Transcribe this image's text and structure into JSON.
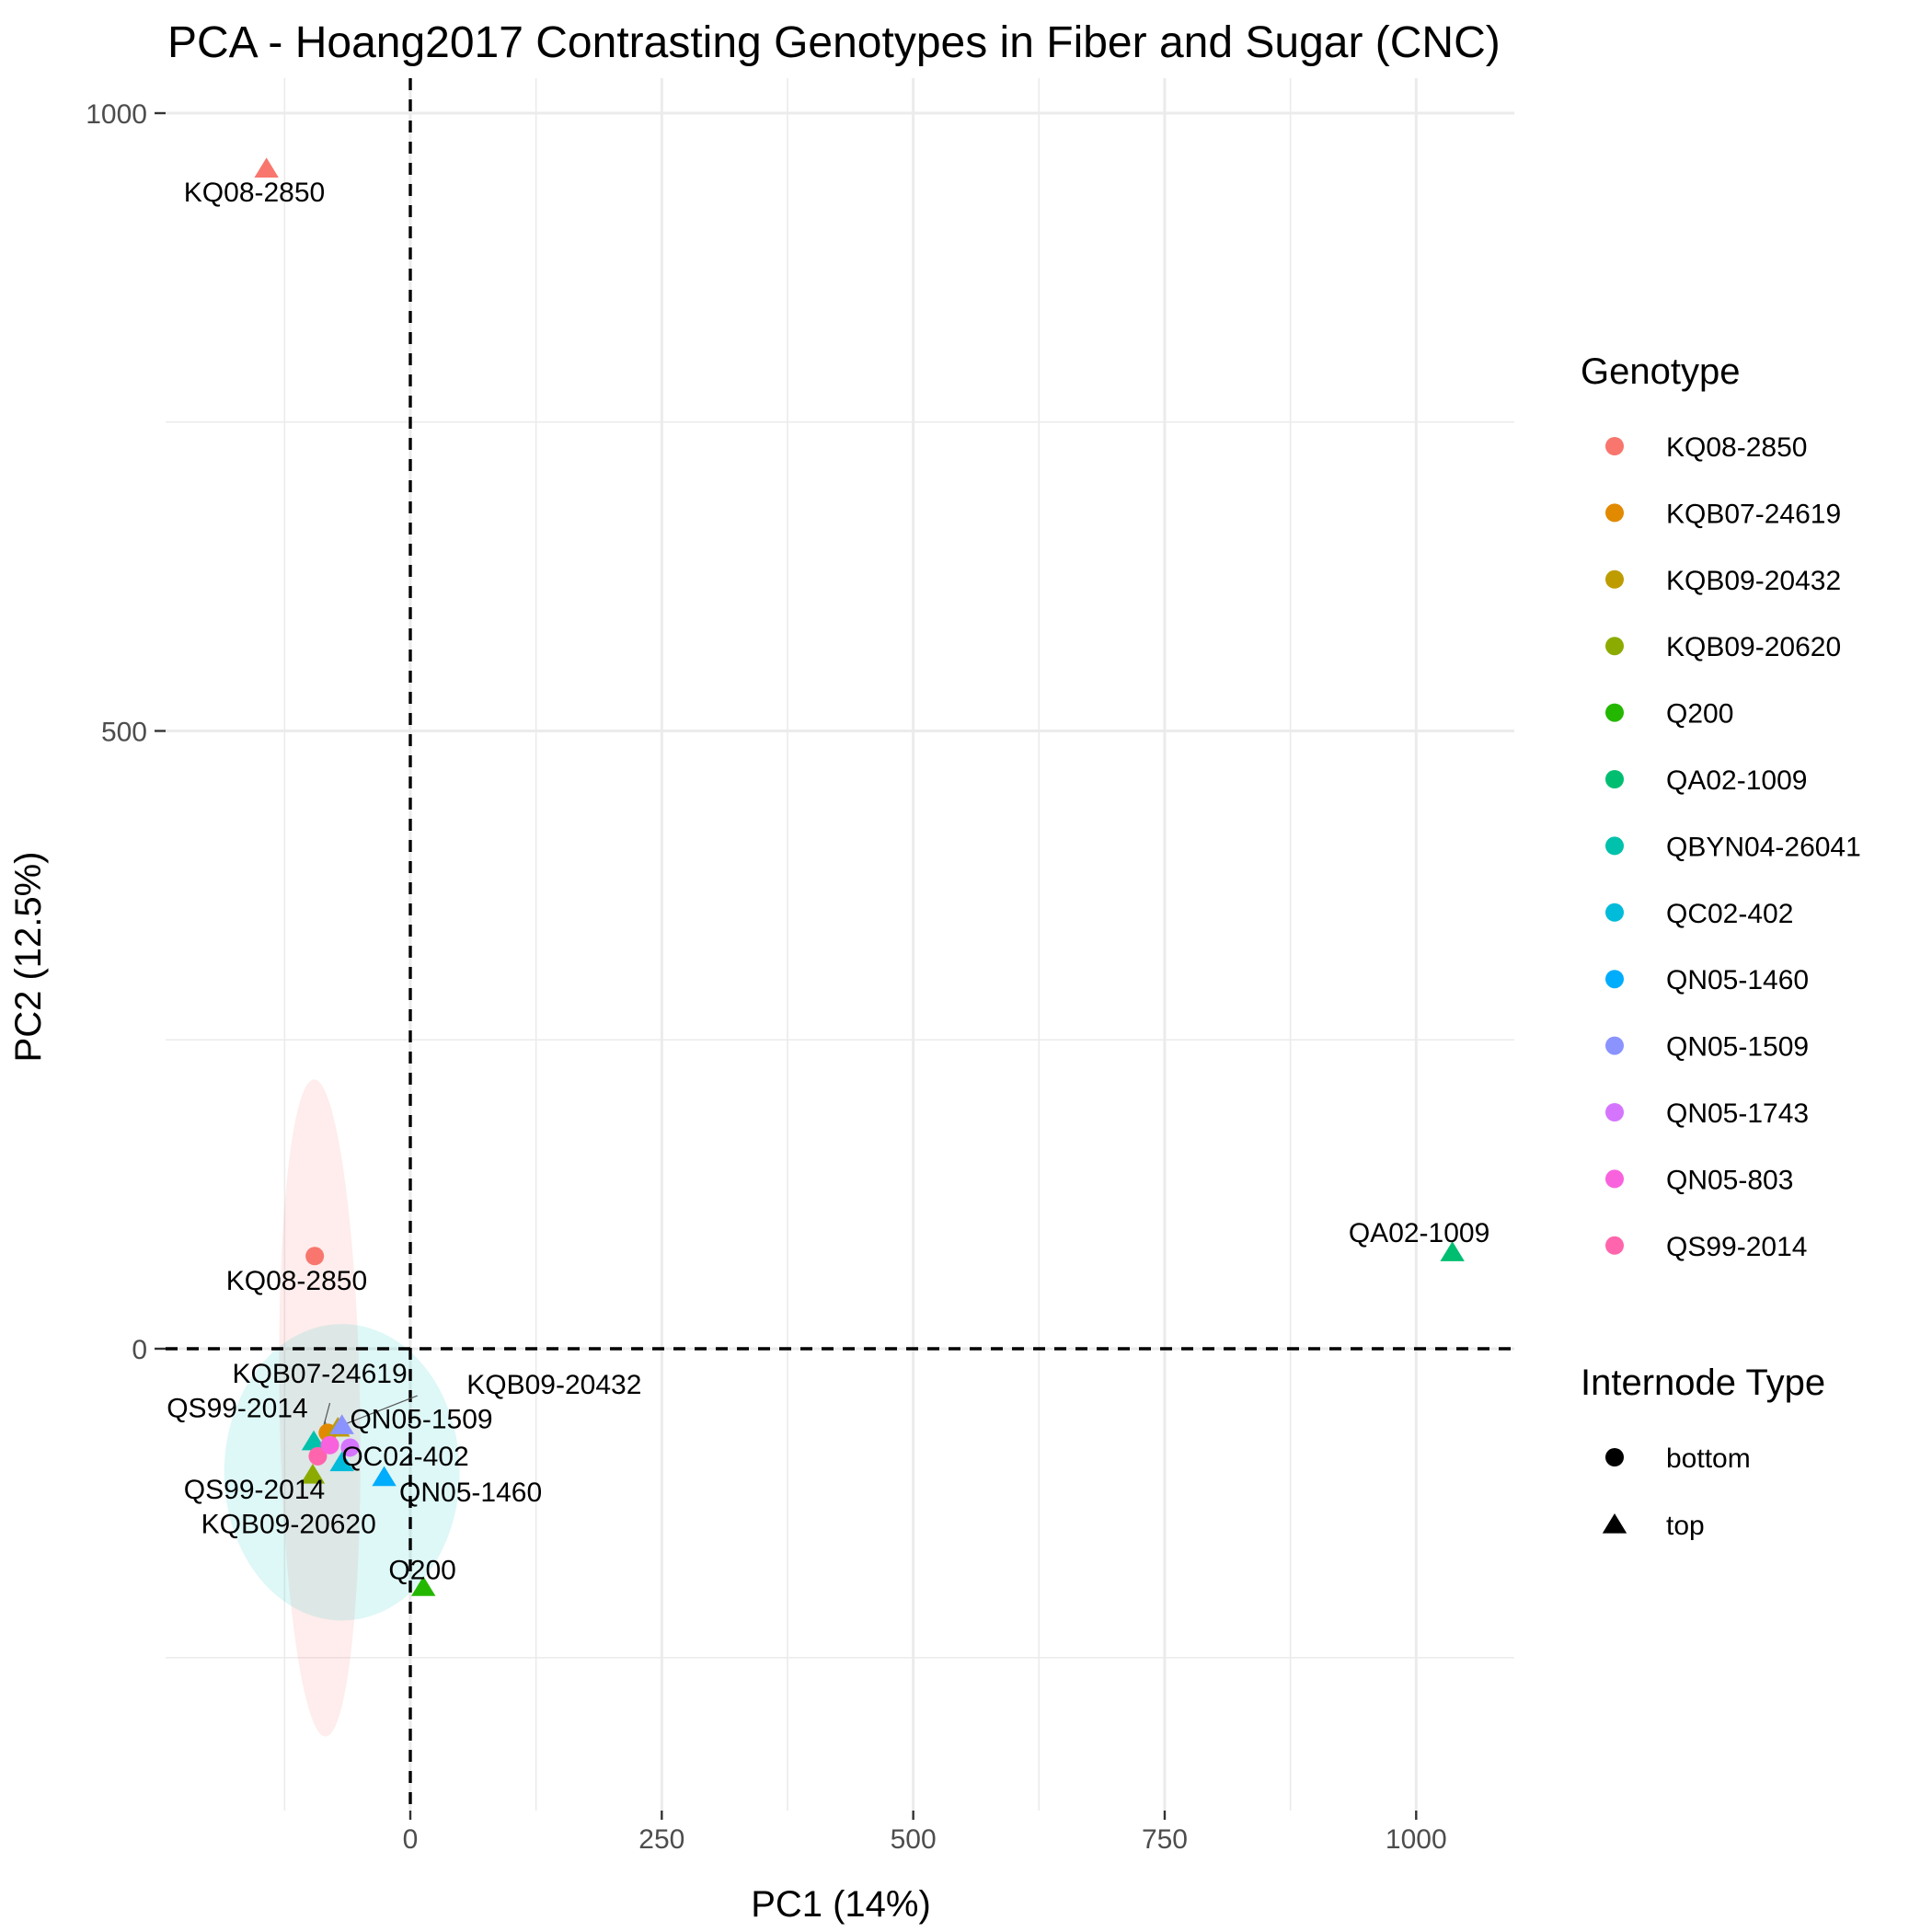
{
  "chart_data": {
    "type": "scatter",
    "title": "PCA - Hoang2017 Contrasting Genotypes in Fiber and Sugar (CNC)",
    "xlabel": "PC1 (14%)",
    "ylabel": "PC2 (12.5%)",
    "xlim": [
      -250,
      1100
    ],
    "ylim": [
      -375,
      1030
    ],
    "x_ticks": [
      0,
      250,
      500,
      750,
      1000
    ],
    "x_tick_labels": [
      "0",
      "250",
      "500",
      "750",
      "1000"
    ],
    "y_ticks": [
      0,
      500,
      1000
    ],
    "y_tick_labels": [
      "0",
      "500",
      "1000"
    ],
    "grid": true,
    "reference_lines": {
      "x": 0,
      "y": 0,
      "style": "dashed"
    },
    "legend_placement": "right",
    "legend_color": {
      "title": "Genotype",
      "entries": [
        {
          "name": "KQ08-2850",
          "color": "#F8766D"
        },
        {
          "name": "KQB07-24619",
          "color": "#E18A00"
        },
        {
          "name": "KQB09-20432",
          "color": "#BE9C00"
        },
        {
          "name": "KQB09-20620",
          "color": "#8CAB00"
        },
        {
          "name": "Q200",
          "color": "#24B700"
        },
        {
          "name": "QA02-1009",
          "color": "#00BE70"
        },
        {
          "name": "QBYN04-26041",
          "color": "#00C1AB"
        },
        {
          "name": "QC02-402",
          "color": "#00BBDA"
        },
        {
          "name": "QN05-1460",
          "color": "#00ACFC"
        },
        {
          "name": "QN05-1509",
          "color": "#8B93FF"
        },
        {
          "name": "QN05-1743",
          "color": "#D575FE"
        },
        {
          "name": "QN05-803",
          "color": "#F962DD"
        },
        {
          "name": "QS99-2014",
          "color": "#FF65AC"
        }
      ]
    },
    "legend_shape": {
      "title": "Internode Type",
      "entries": [
        {
          "name": "bottom",
          "shape": "circle"
        },
        {
          "name": "top",
          "shape": "triangle"
        }
      ]
    },
    "ellipses": [
      {
        "group": "top",
        "color": "#F8766D",
        "cx": -90,
        "cy": -48,
        "rx": 40,
        "ry": 266,
        "rotation_deg": 1
      },
      {
        "group": "bottom",
        "color": "#00BFC4",
        "cx": -68,
        "cy": -100,
        "rx": 117,
        "ry": 120,
        "rotation_deg": 0
      }
    ],
    "points": [
      {
        "genotype": "KQ08-2850",
        "type": "top",
        "x": -143,
        "y": 955
      },
      {
        "genotype": "KQ08-2850",
        "type": "bottom",
        "x": -95,
        "y": 75
      },
      {
        "genotype": "QA02-1009",
        "type": "top",
        "x": 1036,
        "y": 78
      },
      {
        "genotype": "KQB07-24619",
        "type": "bottom",
        "x": -82,
        "y": -68
      },
      {
        "genotype": "KQB09-20432",
        "type": "top",
        "x": -72,
        "y": -64
      },
      {
        "genotype": "QN05-1509",
        "type": "top",
        "x": -68,
        "y": -62
      },
      {
        "genotype": "QBYN04-26041",
        "type": "top",
        "x": -96,
        "y": -75
      },
      {
        "genotype": "QS99-2014",
        "type": "bottom",
        "x": -92,
        "y": -87
      },
      {
        "genotype": "QN05-803",
        "type": "bottom",
        "x": -80,
        "y": -78
      },
      {
        "genotype": "QN05-1743",
        "type": "bottom",
        "x": -60,
        "y": -80
      },
      {
        "genotype": "QC02-402",
        "type": "top",
        "x": -68,
        "y": -92
      },
      {
        "genotype": "QN05-1460",
        "type": "top",
        "x": -26,
        "y": -104
      },
      {
        "genotype": "KQB09-20620",
        "type": "top",
        "x": -97,
        "y": -102
      },
      {
        "genotype": "Q200",
        "type": "top",
        "x": 13,
        "y": -193
      }
    ],
    "point_labels": [
      {
        "text": "KQ08-2850",
        "x": -155,
        "y": 936
      },
      {
        "text": "KQ08-2850",
        "x": -113,
        "y": 55
      },
      {
        "text": "QA02-1009",
        "x": 1003,
        "y": 94
      },
      {
        "text": "KQB07-24619",
        "x": -90,
        "y": -20
      },
      {
        "text": "KQB09-20432",
        "x": 143,
        "y": -29
      },
      {
        "text": "QS99-2014",
        "x": -172,
        "y": -48
      },
      {
        "text": "QN05-1509",
        "x": 11,
        "y": -57
      },
      {
        "text": "QC02-402",
        "x": -5,
        "y": -87
      },
      {
        "text": "QS99-2014",
        "x": -155,
        "y": -114
      },
      {
        "text": "QN05-1460",
        "x": 60,
        "y": -116
      },
      {
        "text": "KQB09-20620",
        "x": -121,
        "y": -142
      },
      {
        "text": "Q200",
        "x": 12,
        "y": -179
      }
    ],
    "label_segments": [
      {
        "x1": -85,
        "y1": -58,
        "x2": -82,
        "y2": -68
      },
      {
        "x1": 7,
        "y1": -38,
        "x2": -68,
        "y2": -62
      },
      {
        "x1": -80,
        "y1": -44,
        "x2": -88,
        "y2": -68
      }
    ]
  }
}
